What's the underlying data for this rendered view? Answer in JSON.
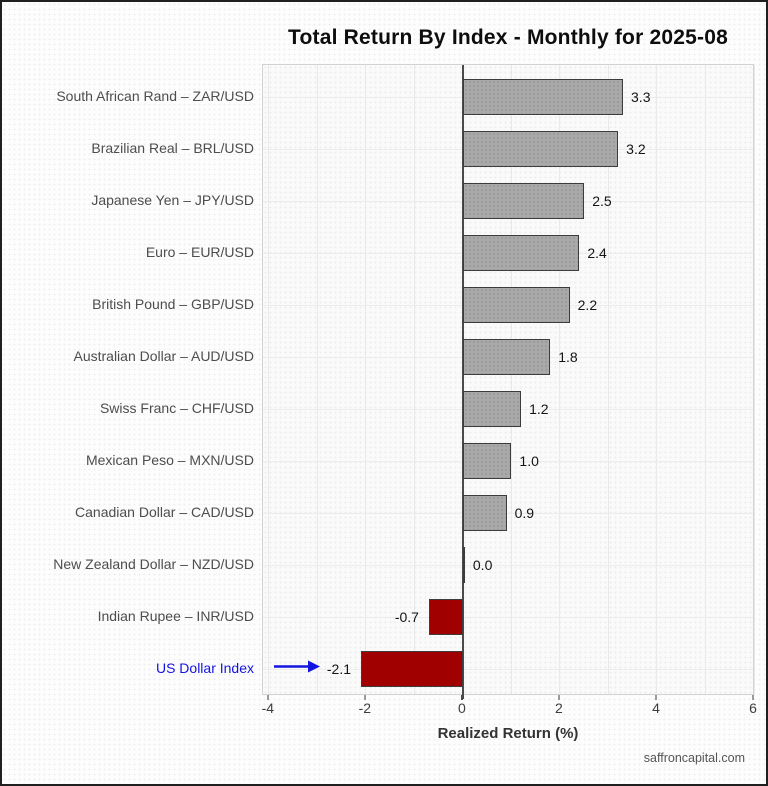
{
  "page": {
    "watermark": "saffroncapital.com"
  },
  "chart_data": {
    "type": "bar",
    "orientation": "horizontal",
    "title": "Total Return By Index - Monthly for 2025-08",
    "xlabel": "Realized Return (%)",
    "xlim": [
      -4.12,
      6.02
    ],
    "xticks": [
      -4,
      -2,
      0,
      2,
      4,
      6
    ],
    "grid": {
      "vertical_step": 1,
      "horizontal": "per-category-row"
    },
    "legend_position": "none",
    "categories": [
      "South African Rand – ZAR/USD",
      "Brazilian Real – BRL/USD",
      "Japanese Yen – JPY/USD",
      "Euro – EUR/USD",
      "British Pound – GBP/USD",
      "Australian Dollar – AUD/USD",
      "Swiss Franc – CHF/USD",
      "Mexican Peso – MXN/USD",
      "Canadian Dollar – CAD/USD",
      "New Zealand Dollar – NZD/USD",
      "Indian Rupee – INR/USD",
      "US Dollar Index"
    ],
    "values": [
      3.3,
      3.2,
      2.5,
      2.4,
      2.2,
      1.8,
      1.2,
      1.0,
      0.9,
      0.0,
      -0.7,
      -2.1
    ],
    "value_labels": [
      "3.3",
      "3.2",
      "2.5",
      "2.4",
      "2.2",
      "1.8",
      "1.2",
      "1.0",
      "0.9",
      "0.0",
      "-0.7",
      "-2.1"
    ],
    "highlight": {
      "category": "US Dollar Index",
      "marker": "blue-right-arrow",
      "color": "#1414e0"
    },
    "colors": {
      "positive_bar": "#a9a9a9",
      "negative_bar": "#a00000",
      "bar_border": "#3c3c3c"
    }
  }
}
